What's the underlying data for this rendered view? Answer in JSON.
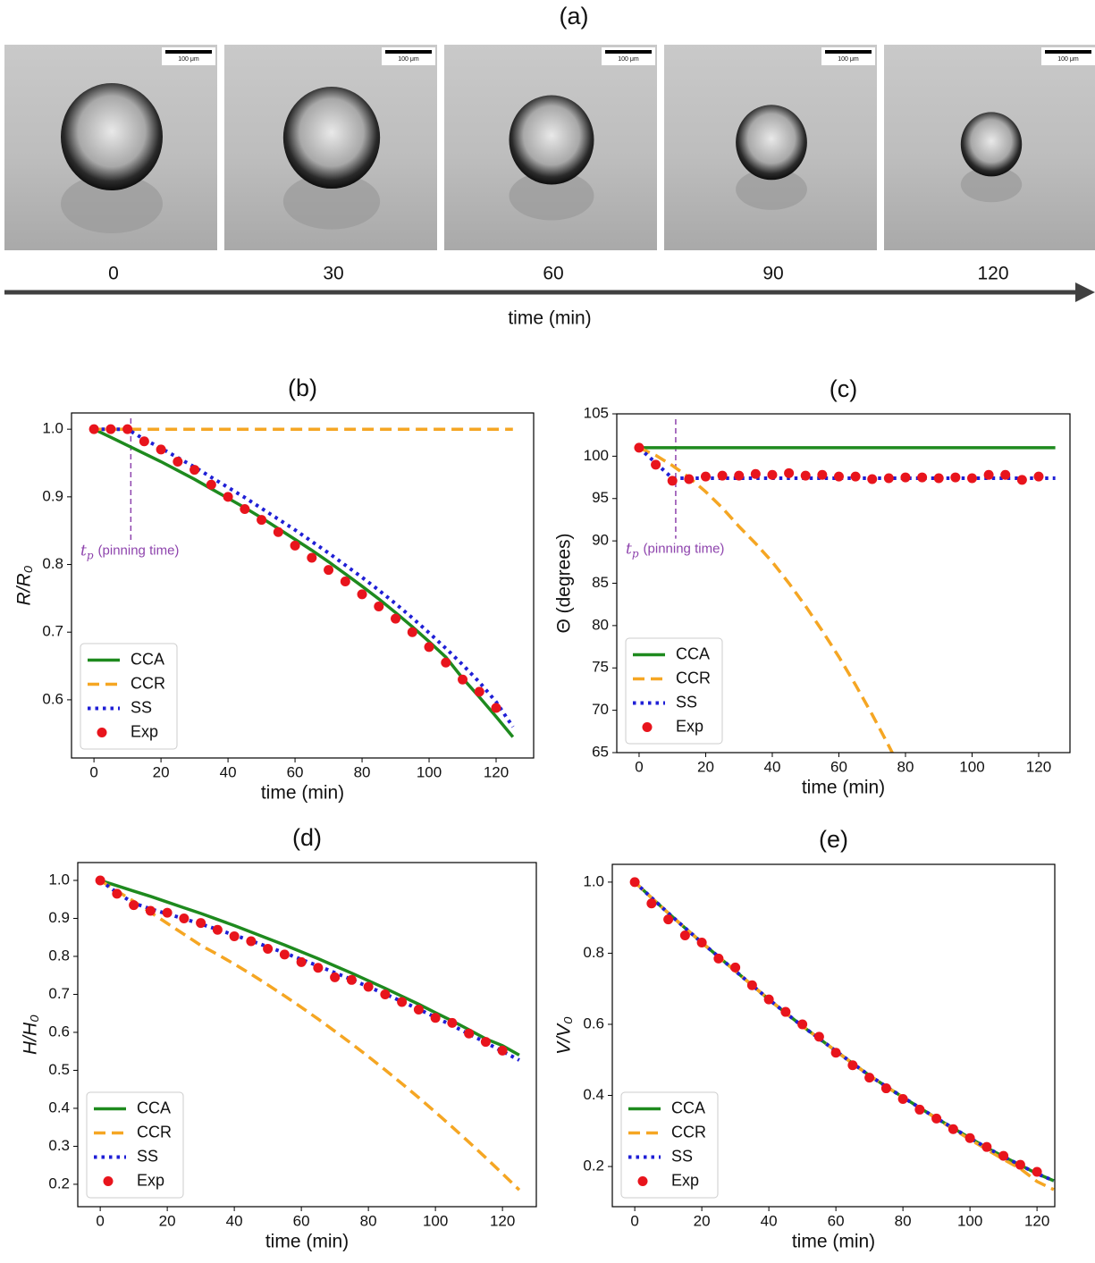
{
  "panel_a": {
    "label": "(a)",
    "scale_bar": "100 μm",
    "times": [
      0,
      30,
      60,
      90,
      120
    ],
    "axis_label": "time (min)"
  },
  "chart_data": [
    {
      "type": "line",
      "title": "(b)",
      "xlabel": "time (min)",
      "ylabel": "R/R₀",
      "xlim": [
        -6.7,
        131.2
      ],
      "ylim": [
        0.514,
        1.024
      ],
      "xticks": [
        0,
        20,
        40,
        60,
        80,
        100,
        120
      ],
      "yticks": [
        0.6,
        0.7,
        0.8,
        0.9,
        {
          "value": 1,
          "label": "1.0"
        }
      ],
      "legend": "lower left",
      "annotation": {
        "symbol": "t",
        "subscript": "p",
        "text": "(pinning time)",
        "x": 11,
        "color": "#8e44ad"
      },
      "series": [
        {
          "name": "CCA",
          "color": "#1e8a1e",
          "style": "solid",
          "x": [
            0,
            5,
            10,
            15,
            20,
            25,
            30,
            35,
            40,
            45,
            50,
            55,
            60,
            65,
            70,
            75,
            80,
            85,
            90,
            95,
            100,
            105,
            110,
            115,
            120,
            125
          ],
          "values": [
            1.0,
            0.988,
            0.976,
            0.964,
            0.952,
            0.939,
            0.926,
            0.912,
            0.898,
            0.884,
            0.869,
            0.853,
            0.837,
            0.821,
            0.804,
            0.786,
            0.768,
            0.749,
            0.729,
            0.708,
            0.686,
            0.663,
            0.632,
            0.604,
            0.575,
            0.545
          ]
        },
        {
          "name": "CCR",
          "color": "#f5a623",
          "style": "dashed",
          "x": [
            0,
            5,
            10,
            15,
            20,
            25,
            30,
            35,
            40,
            45,
            50,
            55,
            60,
            65,
            70,
            75,
            80,
            85,
            90,
            95,
            100,
            105,
            110,
            115,
            120,
            125
          ],
          "values": [
            1,
            1,
            1,
            1,
            1,
            1,
            1,
            1,
            1,
            1,
            1,
            1,
            1,
            1,
            1,
            1,
            1,
            1,
            1,
            1,
            1,
            1,
            1,
            1,
            1,
            1
          ]
        },
        {
          "name": "SS",
          "color": "#1f1fd6",
          "style": "dotted",
          "x": [
            0,
            5,
            10,
            15,
            20,
            25,
            30,
            35,
            40,
            45,
            50,
            55,
            60,
            65,
            70,
            75,
            80,
            85,
            90,
            95,
            100,
            105,
            110,
            115,
            120,
            125
          ],
          "values": [
            1.0,
            1.0,
            1.0,
            0.985,
            0.972,
            0.958,
            0.944,
            0.929,
            0.914,
            0.899,
            0.883,
            0.867,
            0.851,
            0.834,
            0.817,
            0.799,
            0.781,
            0.762,
            0.742,
            0.721,
            0.699,
            0.676,
            0.652,
            0.626,
            0.597,
            0.56
          ]
        },
        {
          "name": "Exp",
          "color": "#e8141c",
          "style": "markers",
          "x": [
            0,
            5,
            10,
            15,
            20,
            25,
            30,
            35,
            40,
            45,
            50,
            55,
            60,
            65,
            70,
            75,
            80,
            85,
            90,
            95,
            100,
            105,
            110,
            115,
            120
          ],
          "values": [
            1.0,
            1.0,
            1.0,
            0.982,
            0.97,
            0.952,
            0.94,
            0.918,
            0.9,
            0.882,
            0.866,
            0.848,
            0.828,
            0.81,
            0.792,
            0.775,
            0.756,
            0.738,
            0.72,
            0.7,
            0.678,
            0.655,
            0.63,
            0.612,
            0.588
          ]
        }
      ]
    },
    {
      "type": "line",
      "title": "(c)",
      "xlabel": "time (min)",
      "ylabel": "Θ (degrees)",
      "xlim": [
        -6.7,
        129.4
      ],
      "ylim": [
        65,
        105
      ],
      "xticks": [
        0,
        20,
        40,
        60,
        80,
        100,
        120
      ],
      "yticks": [
        65,
        70,
        75,
        80,
        85,
        90,
        95,
        100,
        105
      ],
      "legend": "lower left",
      "annotation": {
        "symbol": "t",
        "subscript": "p",
        "text": "(pinning time)",
        "x": 11,
        "color": "#8e44ad"
      },
      "series": [
        {
          "name": "CCA",
          "color": "#1e8a1e",
          "style": "solid",
          "x": [
            0,
            5,
            10,
            15,
            20,
            25,
            30,
            35,
            40,
            45,
            50,
            55,
            60,
            65,
            70,
            75,
            80,
            85,
            90,
            95,
            100,
            105,
            110,
            115,
            120,
            125
          ],
          "values": [
            101,
            101,
            101,
            101,
            101,
            101,
            101,
            101,
            101,
            101,
            101,
            101,
            101,
            101,
            101,
            101,
            101,
            101,
            101,
            101,
            101,
            101,
            101,
            101,
            101,
            101
          ]
        },
        {
          "name": "CCR",
          "color": "#f5a623",
          "style": "dashed",
          "x": [
            0,
            5,
            10,
            15,
            20,
            25,
            30,
            35,
            40,
            45,
            50,
            55,
            60,
            65,
            70,
            75,
            80
          ],
          "values": [
            101,
            100.1,
            98.9,
            97.5,
            95.8,
            93.9,
            91.7,
            89.7,
            87.5,
            85.0,
            82.3,
            79.4,
            76.3,
            73.0,
            69.5,
            65.8,
            61.9
          ]
        },
        {
          "name": "SS",
          "color": "#1f1fd6",
          "style": "dotted",
          "x": [
            0,
            5,
            10,
            15,
            20,
            25,
            30,
            35,
            40,
            45,
            50,
            55,
            60,
            65,
            70,
            75,
            80,
            85,
            90,
            95,
            100,
            105,
            110,
            115,
            120,
            125
          ],
          "values": [
            101,
            99.2,
            97.4,
            97.4,
            97.4,
            97.4,
            97.4,
            97.4,
            97.4,
            97.4,
            97.4,
            97.4,
            97.4,
            97.4,
            97.4,
            97.4,
            97.4,
            97.4,
            97.4,
            97.4,
            97.4,
            97.4,
            97.4,
            97.4,
            97.4,
            97.4
          ]
        },
        {
          "name": "Exp",
          "color": "#e8141c",
          "style": "markers",
          "x": [
            0,
            5,
            10,
            15,
            20,
            25,
            30,
            35,
            40,
            45,
            50,
            55,
            60,
            65,
            70,
            75,
            80,
            85,
            90,
            95,
            100,
            105,
            110,
            115,
            120
          ],
          "values": [
            101,
            99,
            97.1,
            97.3,
            97.6,
            97.7,
            97.7,
            97.9,
            97.8,
            98,
            97.7,
            97.8,
            97.6,
            97.6,
            97.3,
            97.4,
            97.5,
            97.5,
            97.4,
            97.5,
            97.4,
            97.8,
            97.8,
            97.2,
            97.6
          ]
        }
      ]
    },
    {
      "type": "line",
      "title": "(d)",
      "xlabel": "time (min)",
      "ylabel": "H/H₀",
      "xlim": [
        -6.7,
        130.1
      ],
      "ylim": [
        0.141,
        1.047
      ],
      "xticks": [
        0,
        20,
        40,
        60,
        80,
        100,
        120
      ],
      "yticks": [
        0.2,
        0.3,
        0.4,
        0.5,
        0.6,
        0.7,
        0.8,
        0.9,
        {
          "value": 1,
          "label": "1.0"
        }
      ],
      "legend": "lower left",
      "series": [
        {
          "name": "CCA",
          "color": "#1e8a1e",
          "style": "solid",
          "x": [
            0,
            5,
            10,
            15,
            20,
            25,
            30,
            35,
            40,
            45,
            50,
            55,
            60,
            65,
            70,
            75,
            80,
            85,
            90,
            95,
            100,
            105,
            110,
            115,
            120,
            125
          ],
          "values": [
            1.0,
            0.986,
            0.972,
            0.958,
            0.943,
            0.928,
            0.913,
            0.897,
            0.881,
            0.864,
            0.847,
            0.83,
            0.812,
            0.794,
            0.775,
            0.756,
            0.736,
            0.716,
            0.695,
            0.674,
            0.652,
            0.63,
            0.607,
            0.583,
            0.565,
            0.54
          ]
        },
        {
          "name": "CCR",
          "color": "#f5a623",
          "style": "dashed",
          "x": [
            0,
            5,
            10,
            15,
            20,
            25,
            30,
            35,
            40,
            45,
            50,
            55,
            60,
            65,
            70,
            75,
            80,
            85,
            90,
            95,
            100,
            105,
            110,
            115,
            120,
            125
          ],
          "values": [
            1.0,
            0.972,
            0.945,
            0.916,
            0.887,
            0.858,
            0.829,
            0.805,
            0.78,
            0.753,
            0.725,
            0.696,
            0.666,
            0.635,
            0.603,
            0.57,
            0.536,
            0.501,
            0.465,
            0.428,
            0.39,
            0.351,
            0.311,
            0.27,
            0.228,
            0.185
          ]
        },
        {
          "name": "SS",
          "color": "#1f1fd6",
          "style": "dotted",
          "x": [
            0,
            5,
            10,
            15,
            20,
            25,
            30,
            35,
            40,
            45,
            50,
            55,
            60,
            65,
            70,
            75,
            80,
            85,
            90,
            95,
            100,
            105,
            110,
            115,
            120,
            125
          ],
          "values": [
            1.0,
            0.968,
            0.94,
            0.925,
            0.912,
            0.899,
            0.885,
            0.871,
            0.856,
            0.841,
            0.825,
            0.809,
            0.792,
            0.775,
            0.757,
            0.739,
            0.72,
            0.701,
            0.681,
            0.661,
            0.64,
            0.618,
            0.596,
            0.573,
            0.55,
            0.527
          ]
        },
        {
          "name": "Exp",
          "color": "#e8141c",
          "style": "markers",
          "x": [
            0,
            5,
            10,
            15,
            20,
            25,
            30,
            35,
            40,
            45,
            50,
            55,
            60,
            65,
            70,
            75,
            80,
            85,
            90,
            95,
            100,
            105,
            110,
            115,
            120
          ],
          "values": [
            1.0,
            0.965,
            0.935,
            0.92,
            0.915,
            0.9,
            0.888,
            0.87,
            0.853,
            0.84,
            0.82,
            0.805,
            0.785,
            0.77,
            0.745,
            0.738,
            0.72,
            0.7,
            0.68,
            0.66,
            0.638,
            0.625,
            0.597,
            0.575,
            0.552
          ]
        }
      ]
    },
    {
      "type": "line",
      "title": "(e)",
      "xlabel": "time (min)",
      "ylabel": "V/V₀",
      "xlim": [
        -6.7,
        125.3
      ],
      "ylim": [
        0.087,
        1.05
      ],
      "xticks": [
        0,
        20,
        40,
        60,
        80,
        100,
        120
      ],
      "yticks": [
        0.2,
        0.4,
        0.6,
        0.8,
        {
          "value": 1,
          "label": "1.0"
        }
      ],
      "legend": "lower left",
      "series": [
        {
          "name": "CCA",
          "color": "#1e8a1e",
          "style": "solid",
          "x": [
            0,
            5,
            10,
            15,
            20,
            25,
            30,
            35,
            40,
            45,
            50,
            55,
            60,
            65,
            70,
            75,
            80,
            85,
            90,
            95,
            100,
            105,
            110,
            115,
            120,
            125
          ],
          "values": [
            1.0,
            0.956,
            0.913,
            0.871,
            0.83,
            0.79,
            0.75,
            0.71,
            0.67,
            0.632,
            0.595,
            0.56,
            0.525,
            0.49,
            0.456,
            0.425,
            0.395,
            0.365,
            0.336,
            0.308,
            0.28,
            0.253,
            0.228,
            0.204,
            0.18,
            0.16
          ]
        },
        {
          "name": "CCR",
          "color": "#f5a623",
          "style": "dashed",
          "x": [
            0,
            5,
            10,
            15,
            20,
            25,
            30,
            35,
            40,
            45,
            50,
            55,
            60,
            65,
            70,
            75,
            80,
            85,
            90,
            95,
            100,
            105,
            110,
            115,
            120,
            125
          ],
          "values": [
            1.0,
            0.956,
            0.913,
            0.871,
            0.83,
            0.79,
            0.75,
            0.71,
            0.67,
            0.632,
            0.595,
            0.56,
            0.525,
            0.49,
            0.456,
            0.425,
            0.395,
            0.365,
            0.335,
            0.305,
            0.276,
            0.248,
            0.22,
            0.194,
            0.158,
            0.135
          ]
        },
        {
          "name": "SS",
          "color": "#1f1fd6",
          "style": "dotted",
          "x": [
            0,
            5,
            10,
            15,
            20,
            25,
            30,
            35,
            40,
            45,
            50,
            55,
            60,
            65,
            70,
            75,
            80,
            85,
            90,
            95,
            100,
            105,
            110,
            115,
            120,
            125
          ],
          "values": [
            1.0,
            0.956,
            0.913,
            0.871,
            0.83,
            0.79,
            0.75,
            0.71,
            0.67,
            0.632,
            0.595,
            0.56,
            0.525,
            0.49,
            0.456,
            0.425,
            0.395,
            0.365,
            0.336,
            0.308,
            0.28,
            0.253,
            0.228,
            0.204,
            0.18,
            0.16
          ]
        },
        {
          "name": "Exp",
          "color": "#e8141c",
          "style": "markers",
          "x": [
            0,
            5,
            10,
            15,
            20,
            25,
            30,
            35,
            40,
            45,
            50,
            55,
            60,
            65,
            70,
            75,
            80,
            85,
            90,
            95,
            100,
            105,
            110,
            115,
            120
          ],
          "values": [
            1.0,
            0.94,
            0.895,
            0.85,
            0.83,
            0.785,
            0.76,
            0.71,
            0.67,
            0.635,
            0.6,
            0.565,
            0.52,
            0.485,
            0.45,
            0.42,
            0.39,
            0.36,
            0.335,
            0.305,
            0.28,
            0.255,
            0.23,
            0.205,
            0.185
          ]
        }
      ]
    }
  ]
}
